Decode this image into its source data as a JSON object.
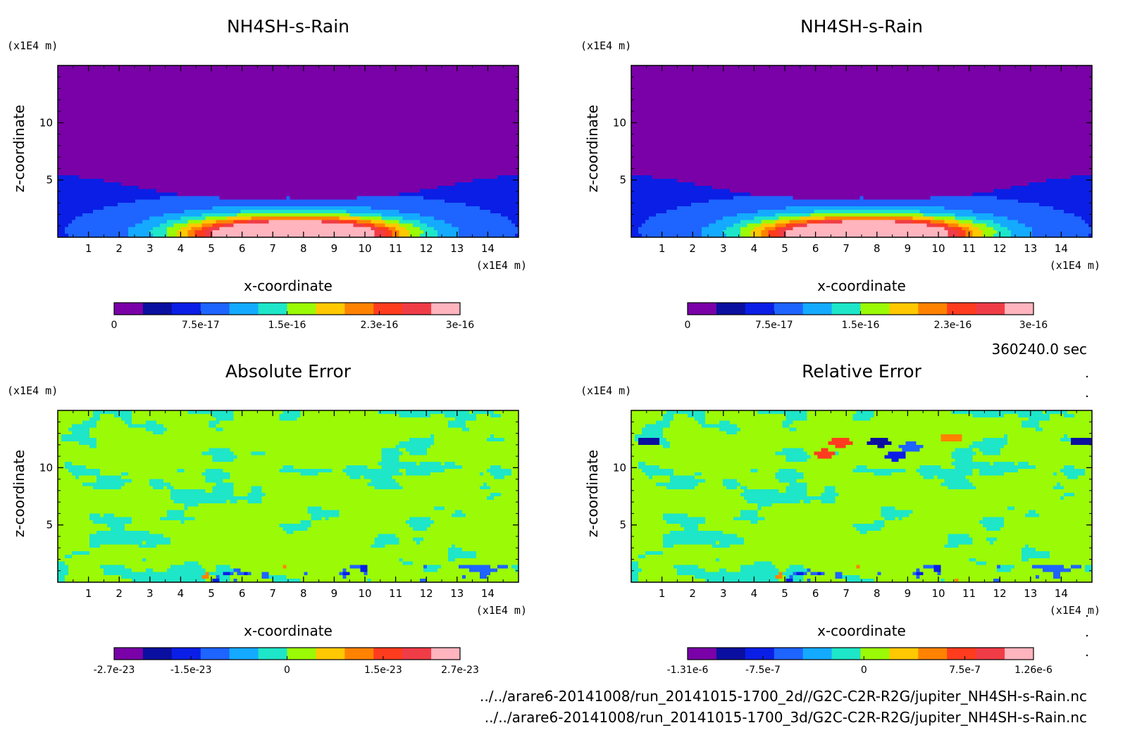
{
  "palette": [
    "#7a00a8",
    "#0a0fa0",
    "#0a1ee6",
    "#1e64ff",
    "#14aaff",
    "#1ee6c8",
    "#9bfa05",
    "#ffc800",
    "#ff8200",
    "#ff3c1e",
    "#f03c46",
    "#ffb4be"
  ],
  "xticks": [
    "1",
    "2",
    "3",
    "4",
    "5",
    "6",
    "7",
    "8",
    "9",
    "10",
    "11",
    "12",
    "13",
    "14"
  ],
  "yticks": [
    "5",
    "10"
  ],
  "time_label": "360240.0 sec",
  "files": [
    "../../arare6-20141008/run_20141015-1700_2d//G2C-C2R-R2G/jupiter_NH4SH-s-Rain.nc",
    "../../arare6-20141008/run_20141015-1700_3d/G2C-C2R-R2G/jupiter_NH4SH-s-Rain.nc"
  ],
  "chart_data": [
    {
      "type": "heatmap",
      "title": "NH4SH-s-Rain",
      "xlabel": "x-coordinate",
      "ylabel": "z-coordinate",
      "xunit": "(x1E4 m)",
      "yunit": "(x1E4 m)",
      "xlim": [
        0,
        15
      ],
      "ylim": [
        0,
        15
      ],
      "colorbar": {
        "min": 0,
        "max": 3e-16,
        "labels": [
          "0",
          "7.5e-17",
          "1.5e-16",
          "2.3e-16",
          "3e-16"
        ]
      },
      "field": "rain"
    },
    {
      "type": "heatmap",
      "title": "NH4SH-s-Rain",
      "xlabel": "x-coordinate",
      "ylabel": "z-coordinate",
      "xunit": "(x1E4 m)",
      "yunit": "(x1E4 m)",
      "xlim": [
        0,
        15
      ],
      "ylim": [
        0,
        15
      ],
      "colorbar": {
        "min": 0,
        "max": 3e-16,
        "labels": [
          "0",
          "7.5e-17",
          "1.5e-16",
          "2.3e-16",
          "3e-16"
        ]
      },
      "field": "rain"
    },
    {
      "type": "heatmap",
      "title": "Absolute Error",
      "xlabel": "x-coordinate",
      "ylabel": "z-coordinate",
      "xunit": "(x1E4 m)",
      "yunit": "(x1E4 m)",
      "xlim": [
        0,
        15
      ],
      "ylim": [
        0,
        15
      ],
      "colorbar": {
        "min": -2.7e-23,
        "max": 2.7e-23,
        "labels": [
          "-2.7e-23",
          "-1.5e-23",
          "0",
          "1.5e-23",
          "2.7e-23"
        ]
      },
      "field": "abs_error"
    },
    {
      "type": "heatmap",
      "title": "Relative Error",
      "xlabel": "x-coordinate",
      "ylabel": "z-coordinate",
      "xunit": "(x1E4 m)",
      "yunit": "(x1E4 m)",
      "xlim": [
        0,
        15
      ],
      "ylim": [
        0,
        15
      ],
      "colorbar": {
        "min": -1.31e-06,
        "max": 1.26e-06,
        "labels": [
          "-1.31e-6",
          "-7.5e-7",
          "0",
          "7.5e-7",
          "1.26e-6"
        ]
      },
      "field": "rel_error"
    }
  ]
}
